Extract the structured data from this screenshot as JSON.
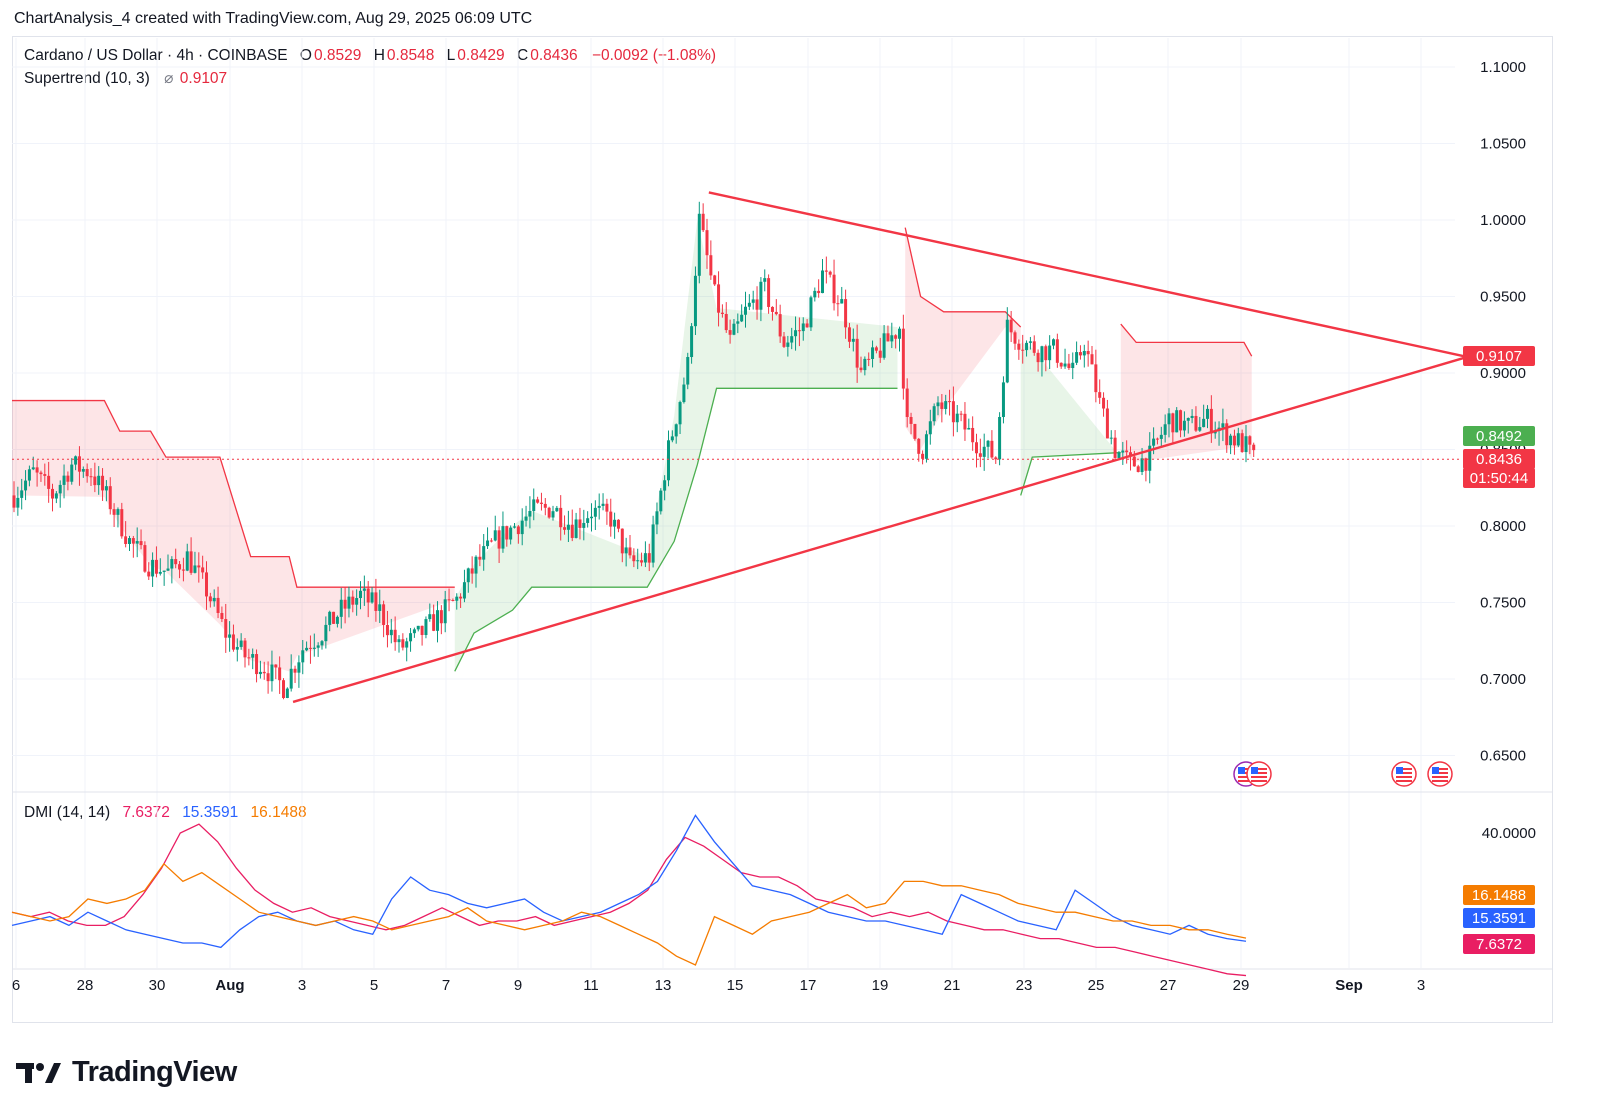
{
  "header": {
    "attribution": "ChartAnalysis_4 created with TradingView.com, Aug 29, 2025 06:09 UTC"
  },
  "legend": {
    "symbol": "Cardano / US Dollar · 4h · COINBASE",
    "o_label": "O",
    "o_value": "0.8529",
    "h_label": "H",
    "h_value": "0.8548",
    "l_label": "L",
    "l_value": "0.8429",
    "c_label": "C",
    "c_value": "0.8436",
    "change": "−0.0092 (−1.08%)",
    "supertrend_label": "Supertrend (10, 3)",
    "supertrend_value": "0.9107",
    "dmi_label": "DMI (14, 14)",
    "dmi_values": [
      "7.6372",
      "15.3591",
      "16.1488"
    ]
  },
  "brand": {
    "name": "TradingView"
  },
  "chart_data": [
    {
      "type": "candlestick",
      "title": "Cardano / US Dollar · 4h · COINBASE",
      "x_tick_labels": [
        "6",
        "28",
        "30",
        "Aug",
        "3",
        "5",
        "7",
        "9",
        "11",
        "13",
        "15",
        "17",
        "19",
        "21",
        "23",
        "25",
        "27",
        "29",
        "Sep",
        "3"
      ],
      "y_tick_labels": [
        "1.1000",
        "1.0500",
        "1.0000",
        "0.9500",
        "0.9000",
        "0.8500",
        "0.8000",
        "0.7500",
        "0.7000",
        "0.6500"
      ],
      "ylim": [
        0.625,
        1.115
      ],
      "price_path": [
        {
          "x": 0,
          "y": 0.82
        },
        {
          "x": 5,
          "y": 0.835
        },
        {
          "x": 10,
          "y": 0.82
        },
        {
          "x": 15,
          "y": 0.84
        },
        {
          "x": 20,
          "y": 0.835
        },
        {
          "x": 25,
          "y": 0.815
        },
        {
          "x": 30,
          "y": 0.79
        },
        {
          "x": 35,
          "y": 0.775
        },
        {
          "x": 40,
          "y": 0.77
        },
        {
          "x": 45,
          "y": 0.78
        },
        {
          "x": 50,
          "y": 0.758
        },
        {
          "x": 55,
          "y": 0.73
        },
        {
          "x": 60,
          "y": 0.715
        },
        {
          "x": 65,
          "y": 0.708
        },
        {
          "x": 70,
          "y": 0.695
        },
        {
          "x": 75,
          "y": 0.72
        },
        {
          "x": 80,
          "y": 0.73
        },
        {
          "x": 85,
          "y": 0.745
        },
        {
          "x": 90,
          "y": 0.755
        },
        {
          "x": 95,
          "y": 0.745
        },
        {
          "x": 100,
          "y": 0.72
        },
        {
          "x": 105,
          "y": 0.728
        },
        {
          "x": 110,
          "y": 0.74
        },
        {
          "x": 115,
          "y": 0.752
        },
        {
          "x": 120,
          "y": 0.775
        },
        {
          "x": 125,
          "y": 0.79
        },
        {
          "x": 130,
          "y": 0.8
        },
        {
          "x": 135,
          "y": 0.81
        },
        {
          "x": 140,
          "y": 0.812
        },
        {
          "x": 145,
          "y": 0.8
        },
        {
          "x": 150,
          "y": 0.81
        },
        {
          "x": 155,
          "y": 0.805
        },
        {
          "x": 160,
          "y": 0.775
        },
        {
          "x": 165,
          "y": 0.78
        },
        {
          "x": 170,
          "y": 0.85
        },
        {
          "x": 175,
          "y": 0.905
        },
        {
          "x": 178,
          "y": 1.0
        },
        {
          "x": 182,
          "y": 0.95
        },
        {
          "x": 186,
          "y": 0.92
        },
        {
          "x": 190,
          "y": 0.94
        },
        {
          "x": 195,
          "y": 0.955
        },
        {
          "x": 200,
          "y": 0.92
        },
        {
          "x": 205,
          "y": 0.93
        },
        {
          "x": 210,
          "y": 0.965
        },
        {
          "x": 215,
          "y": 0.945
        },
        {
          "x": 220,
          "y": 0.9
        },
        {
          "x": 225,
          "y": 0.915
        },
        {
          "x": 230,
          "y": 0.93
        },
        {
          "x": 232,
          "y": 0.865
        },
        {
          "x": 236,
          "y": 0.85
        },
        {
          "x": 240,
          "y": 0.88
        },
        {
          "x": 245,
          "y": 0.87
        },
        {
          "x": 250,
          "y": 0.855
        },
        {
          "x": 255,
          "y": 0.845
        },
        {
          "x": 258,
          "y": 0.93
        },
        {
          "x": 262,
          "y": 0.92
        },
        {
          "x": 266,
          "y": 0.915
        },
        {
          "x": 270,
          "y": 0.915
        },
        {
          "x": 275,
          "y": 0.9
        },
        {
          "x": 278,
          "y": 0.92
        },
        {
          "x": 282,
          "y": 0.88
        },
        {
          "x": 286,
          "y": 0.85
        },
        {
          "x": 290,
          "y": 0.84
        },
        {
          "x": 295,
          "y": 0.845
        },
        {
          "x": 300,
          "y": 0.87
        },
        {
          "x": 305,
          "y": 0.865
        },
        {
          "x": 310,
          "y": 0.87
        },
        {
          "x": 315,
          "y": 0.86
        },
        {
          "x": 320,
          "y": 0.852
        },
        {
          "x": 322,
          "y": 0.8436
        }
      ],
      "supertrend": {
        "value": 0.9107,
        "bear_segments": [
          [
            {
              "x": 0,
              "y": 0.882
            },
            {
              "x": 24,
              "y": 0.882
            },
            {
              "x": 28,
              "y": 0.862
            },
            {
              "x": 36,
              "y": 0.862
            },
            {
              "x": 40,
              "y": 0.845
            },
            {
              "x": 54,
              "y": 0.845
            },
            {
              "x": 62,
              "y": 0.78
            },
            {
              "x": 72,
              "y": 0.78
            },
            {
              "x": 74,
              "y": 0.76
            },
            {
              "x": 115,
              "y": 0.76
            }
          ],
          [
            {
              "x": 232,
              "y": 0.995
            },
            {
              "x": 236,
              "y": 0.95
            },
            {
              "x": 242,
              "y": 0.94
            },
            {
              "x": 258,
              "y": 0.94
            },
            {
              "x": 262,
              "y": 0.93
            }
          ],
          [
            {
              "x": 288,
              "y": 0.932
            },
            {
              "x": 292,
              "y": 0.92
            },
            {
              "x": 320,
              "y": 0.92
            },
            {
              "x": 322,
              "y": 0.911
            }
          ]
        ],
        "bull_segments": [
          [
            {
              "x": 115,
              "y": 0.705
            },
            {
              "x": 120,
              "y": 0.73
            },
            {
              "x": 130,
              "y": 0.745
            },
            {
              "x": 135,
              "y": 0.76
            },
            {
              "x": 165,
              "y": 0.76
            },
            {
              "x": 172,
              "y": 0.79
            },
            {
              "x": 178,
              "y": 0.84
            },
            {
              "x": 183,
              "y": 0.89
            },
            {
              "x": 230,
              "y": 0.89
            }
          ],
          [
            {
              "x": 262,
              "y": 0.82
            },
            {
              "x": 265,
              "y": 0.845
            },
            {
              "x": 288,
              "y": 0.848
            }
          ]
        ]
      },
      "trendlines": [
        {
          "from": {
            "x": 73,
            "y": 0.685
          },
          "to": {
            "x": 378,
            "y": 0.9105
          }
        },
        {
          "from": {
            "x": 181,
            "y": 1.018
          },
          "to": {
            "x": 378,
            "y": 0.9105
          }
        }
      ],
      "price_tags": [
        {
          "label": "0.9107",
          "color": "#f23645"
        },
        {
          "label": "0.8492",
          "color": "#4caf50"
        },
        {
          "label": "0.8436",
          "color": "#f23645"
        },
        {
          "label": "01:50:44",
          "color": "#f23645"
        }
      ]
    },
    {
      "type": "line",
      "title": "DMI (14, 14)",
      "y_tick_labels": [
        "40.0000"
      ],
      "ylim": [
        5,
        45
      ],
      "series": [
        {
          "color": "#e91e63",
          "values": [
            22,
            21,
            22,
            20,
            19,
            19,
            21,
            26,
            32,
            40,
            42,
            38,
            32,
            27,
            24,
            22,
            23,
            21,
            20,
            19,
            18,
            19,
            21,
            23,
            21,
            19,
            20,
            20,
            21,
            19,
            20,
            21,
            22,
            24,
            27,
            34,
            39,
            37,
            34,
            31,
            30,
            30,
            28,
            25,
            24,
            23,
            21,
            22,
            21,
            22,
            20,
            19,
            18,
            18,
            17,
            16,
            16,
            15,
            14,
            14,
            13,
            12,
            11,
            10,
            9,
            8,
            7.6
          ]
        },
        {
          "color": "#2962ff",
          "values": [
            19,
            20,
            21,
            19,
            22,
            20,
            18,
            17,
            16,
            15,
            15,
            14,
            18,
            21,
            22,
            20,
            19,
            20,
            18,
            17,
            25,
            30,
            27,
            26,
            24,
            23,
            24,
            25,
            22,
            20,
            21,
            22,
            24,
            26,
            29,
            36,
            44,
            38,
            33,
            28,
            27,
            26,
            24,
            22,
            21,
            20,
            20,
            19,
            18,
            17,
            26,
            24,
            22,
            20,
            19,
            18,
            27,
            24,
            21,
            19,
            18,
            17,
            19,
            17,
            16,
            15.4
          ]
        },
        {
          "color": "#f57c00",
          "values": [
            22,
            21,
            20,
            21,
            25,
            24,
            25,
            27,
            33,
            29,
            31,
            28,
            25,
            22,
            21,
            20,
            19,
            20,
            21,
            20,
            18,
            19,
            20,
            21,
            23,
            20,
            19,
            18,
            19,
            20,
            22,
            21,
            19,
            17,
            15,
            12,
            10,
            21,
            19,
            17,
            20,
            21,
            22,
            24,
            26,
            23,
            24,
            29,
            29,
            28,
            28,
            27,
            26,
            24,
            23,
            22,
            22,
            21,
            20,
            20,
            19,
            19,
            18,
            18,
            17,
            16.1
          ]
        }
      ],
      "value_tags": [
        {
          "label": "16.1488",
          "color": "#f57c00"
        },
        {
          "label": "15.3591",
          "color": "#2962ff"
        },
        {
          "label": "7.6372",
          "color": "#e91e63"
        }
      ]
    }
  ]
}
